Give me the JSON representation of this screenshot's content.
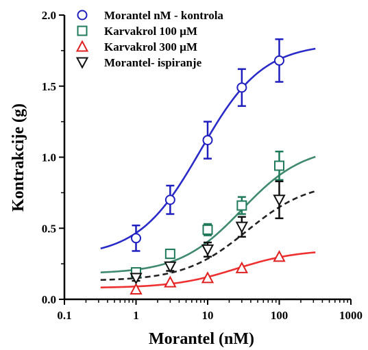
{
  "chart_data": {
    "type": "scatter",
    "xlabel": "Morantel (nM)",
    "ylabel": "Kontrakcije (g)",
    "xscale": "log",
    "xlim": [
      0.1,
      1000
    ],
    "ylim": [
      0,
      2.0
    ],
    "xticks": [
      "0.1",
      "1",
      "10",
      "100",
      "1000"
    ],
    "yticks": [
      "0.0",
      "0.5",
      "1.0",
      "1.5",
      "2.0"
    ],
    "grid": false,
    "legend_position": "top-left",
    "x": [
      1,
      3,
      10,
      30,
      100
    ],
    "series": [
      {
        "name": "Morantel nM - kontrola",
        "marker": "circle",
        "color": "#1f1fbf",
        "line_style": "solid",
        "values": [
          0.43,
          0.7,
          1.12,
          1.49,
          1.68
        ],
        "errors": [
          0.09,
          0.1,
          0.13,
          0.13,
          0.15
        ],
        "fit": {
          "bottom": 0.3,
          "top": 1.8,
          "ec50": 8.0,
          "hill": 1.0
        }
      },
      {
        "name": "Karvakrol 100 µM",
        "marker": "square",
        "color": "#1f7a5a",
        "line_style": "solid",
        "values": [
          0.19,
          0.32,
          0.49,
          0.66,
          0.94
        ],
        "errors": [
          0.02,
          0.03,
          0.04,
          0.06,
          0.1
        ],
        "fit": {
          "bottom": 0.18,
          "top": 1.08,
          "ec50": 30.0,
          "hill": 1.0
        }
      },
      {
        "name": "Karvakrol 300 µM",
        "marker": "triangle-up",
        "color": "#e02020",
        "line_style": "solid",
        "values": [
          0.07,
          0.12,
          0.15,
          0.22,
          0.3
        ],
        "errors": [
          0.0,
          0.0,
          0.0,
          0.0,
          0.0
        ],
        "fit": {
          "bottom": 0.08,
          "top": 0.35,
          "ec50": 25.0,
          "hill": 1.0
        }
      },
      {
        "name": "Morantel- ispiranje",
        "marker": "triangle-down",
        "color": "#111111",
        "line_style": "dashed",
        "values": [
          0.15,
          0.23,
          0.35,
          0.51,
          0.7
        ],
        "errors": [
          0.02,
          0.03,
          0.05,
          0.07,
          0.13
        ],
        "fit": {
          "bottom": 0.13,
          "top": 0.83,
          "ec50": 35.0,
          "hill": 1.0
        }
      }
    ]
  }
}
